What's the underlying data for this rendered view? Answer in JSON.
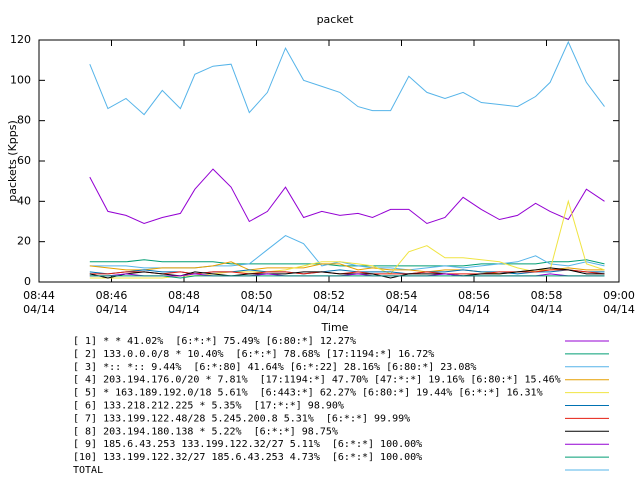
{
  "chart_data": {
    "type": "line",
    "title": "packet",
    "x_label": "Time",
    "y_label": "packets (Kpps)",
    "xlim": [
      0,
      16
    ],
    "xticks": [
      {
        "value": 0,
        "label": "08:44 04/14"
      },
      {
        "value": 2,
        "label": "08:46 04/14"
      },
      {
        "value": 4,
        "label": "08:48 04/14"
      },
      {
        "value": 6,
        "label": "08:50 04/14"
      },
      {
        "value": 8,
        "label": "08:52 04/14"
      },
      {
        "value": 10,
        "label": "08:54 04/14"
      },
      {
        "value": 12,
        "label": "08:56 04/14"
      },
      {
        "value": 14,
        "label": "08:58 04/14"
      },
      {
        "value": 16,
        "label": "09:00 04/14"
      }
    ],
    "ylim": [
      0,
      120
    ],
    "yticks": [
      0,
      20,
      40,
      60,
      80,
      100,
      120
    ],
    "grid": false,
    "x": [
      1.4,
      1.9,
      2.4,
      2.9,
      3.4,
      3.9,
      4.3,
      4.8,
      5.3,
      5.8,
      6.3,
      6.8,
      7.3,
      7.8,
      8.3,
      8.8,
      9.2,
      9.7,
      10.2,
      10.7,
      11.2,
      11.7,
      12.2,
      12.7,
      13.2,
      13.7,
      14.1,
      14.6,
      15.1,
      15.6
    ],
    "series": [
      {
        "name": "[ 1] * * 41.02%  [6:*:*] 75.49% [6:80:*] 12.27%",
        "color": "#9400d3",
        "values": [
          52,
          35,
          33,
          29,
          32,
          34,
          46,
          56,
          47,
          30,
          35,
          47,
          32,
          35,
          33,
          34,
          32,
          36,
          36,
          29,
          32,
          42,
          36,
          31,
          33,
          39,
          35,
          31,
          46,
          40
        ]
      },
      {
        "name": "[ 2] 133.0.0.0/8 * 10.40%  [6:*:*] 78.68% [17:1194:*] 16.72%",
        "color": "#009e73",
        "values": [
          10,
          10,
          10,
          11,
          10,
          10,
          10,
          10,
          9,
          9,
          9,
          9,
          9,
          9,
          8,
          8,
          8,
          8,
          8,
          8,
          8,
          8,
          9,
          9,
          9,
          9,
          10,
          10,
          11,
          9
        ]
      },
      {
        "name": "[ 3] *:: *:: 9.44%  [6:*:80] 41.64% [6:*:22] 28.16% [6:80:*] 23.08%",
        "color": "#56b4e9",
        "values": [
          8,
          8,
          8,
          7,
          7,
          7,
          7,
          8,
          8,
          9,
          16,
          23,
          19,
          8,
          10,
          8,
          7,
          7,
          6,
          7,
          8,
          7,
          8,
          9,
          10,
          13,
          9,
          8,
          10,
          8
        ]
      },
      {
        "name": "[ 4] 203.194.176.0/20 * 7.81%  [17:1194:*] 47.70% [47:*:*] 19.16% [6:80:*] 15.46%",
        "color": "#e69f00",
        "values": [
          8,
          7,
          6,
          6,
          7,
          7,
          7,
          8,
          10,
          6,
          7,
          7,
          7,
          9,
          9,
          6,
          7,
          6,
          6,
          5,
          6,
          6,
          5,
          4,
          5,
          6,
          6,
          7,
          6,
          6
        ]
      },
      {
        "name": "[ 5] * 163.189.192.0/18 5.61%  [6:443:*] 62.27% [6:80:*] 19.44% [6:*:*] 16.31%",
        "color": "#f0e442",
        "values": [
          2,
          2,
          2,
          2,
          2,
          3,
          3,
          4,
          5,
          5,
          5,
          6,
          8,
          10,
          10,
          9,
          8,
          4,
          15,
          18,
          12,
          12,
          11,
          10,
          7,
          5,
          6,
          40,
          9,
          6
        ]
      },
      {
        "name": "[ 6] 133.218.212.225 * 5.35%  [17:*:*] 98.90%",
        "color": "#0072b2",
        "values": [
          5,
          4,
          5,
          6,
          5,
          5,
          4,
          5,
          5,
          6,
          5,
          5,
          4,
          5,
          6,
          5,
          5,
          5,
          4,
          5,
          5,
          6,
          5,
          5,
          4,
          5,
          5,
          6,
          5,
          5
        ]
      },
      {
        "name": "[ 7] 133.199.122.48/28 5.245.200.8 5.31%  [6:*:*] 99.99%",
        "color": "#e51e10",
        "values": [
          4,
          4,
          5,
          5,
          4,
          5,
          4,
          5,
          5,
          4,
          5,
          5,
          4,
          5,
          4,
          5,
          4,
          4,
          4,
          5,
          4,
          4,
          4,
          5,
          5,
          5,
          6,
          6,
          5,
          4
        ]
      },
      {
        "name": "[ 8] 203.194.180.138 * 5.22%  [6:*:*] 98.75%",
        "color": "#000000",
        "values": [
          4,
          2,
          4,
          5,
          4,
          3,
          5,
          4,
          3,
          4,
          4,
          4,
          5,
          5,
          4,
          4,
          4,
          2,
          4,
          4,
          4,
          3,
          4,
          4,
          5,
          6,
          7,
          6,
          4,
          4
        ]
      },
      {
        "name": "[ 9] 185.6.43.253 133.199.122.32/27 5.11%  [6:*:*] 100.00%",
        "color": "#9400d3",
        "values": [
          3,
          3,
          4,
          3,
          3,
          3,
          4,
          3,
          3,
          3,
          4,
          3,
          3,
          3,
          3,
          4,
          3,
          3,
          3,
          3,
          4,
          3,
          3,
          3,
          3,
          3,
          4,
          3,
          3,
          3
        ]
      },
      {
        "name": "[10] 133.199.122.32/27 185.6.43.253 4.73%  [6:*:*] 100.00%",
        "color": "#009e73",
        "values": [
          3,
          3,
          3,
          3,
          3,
          2,
          3,
          3,
          3,
          3,
          3,
          3,
          3,
          3,
          3,
          3,
          3,
          3,
          3,
          3,
          3,
          3,
          3,
          3,
          3,
          3,
          3,
          3,
          3,
          3
        ]
      },
      {
        "name": "TOTAL",
        "color": "#56b4e9",
        "values": [
          108,
          86,
          91,
          83,
          95,
          86,
          103,
          107,
          108,
          84,
          94,
          116,
          100,
          97,
          94,
          87,
          85,
          85,
          102,
          94,
          91,
          94,
          89,
          88,
          87,
          92,
          99,
          119,
          99,
          87
        ]
      }
    ]
  }
}
